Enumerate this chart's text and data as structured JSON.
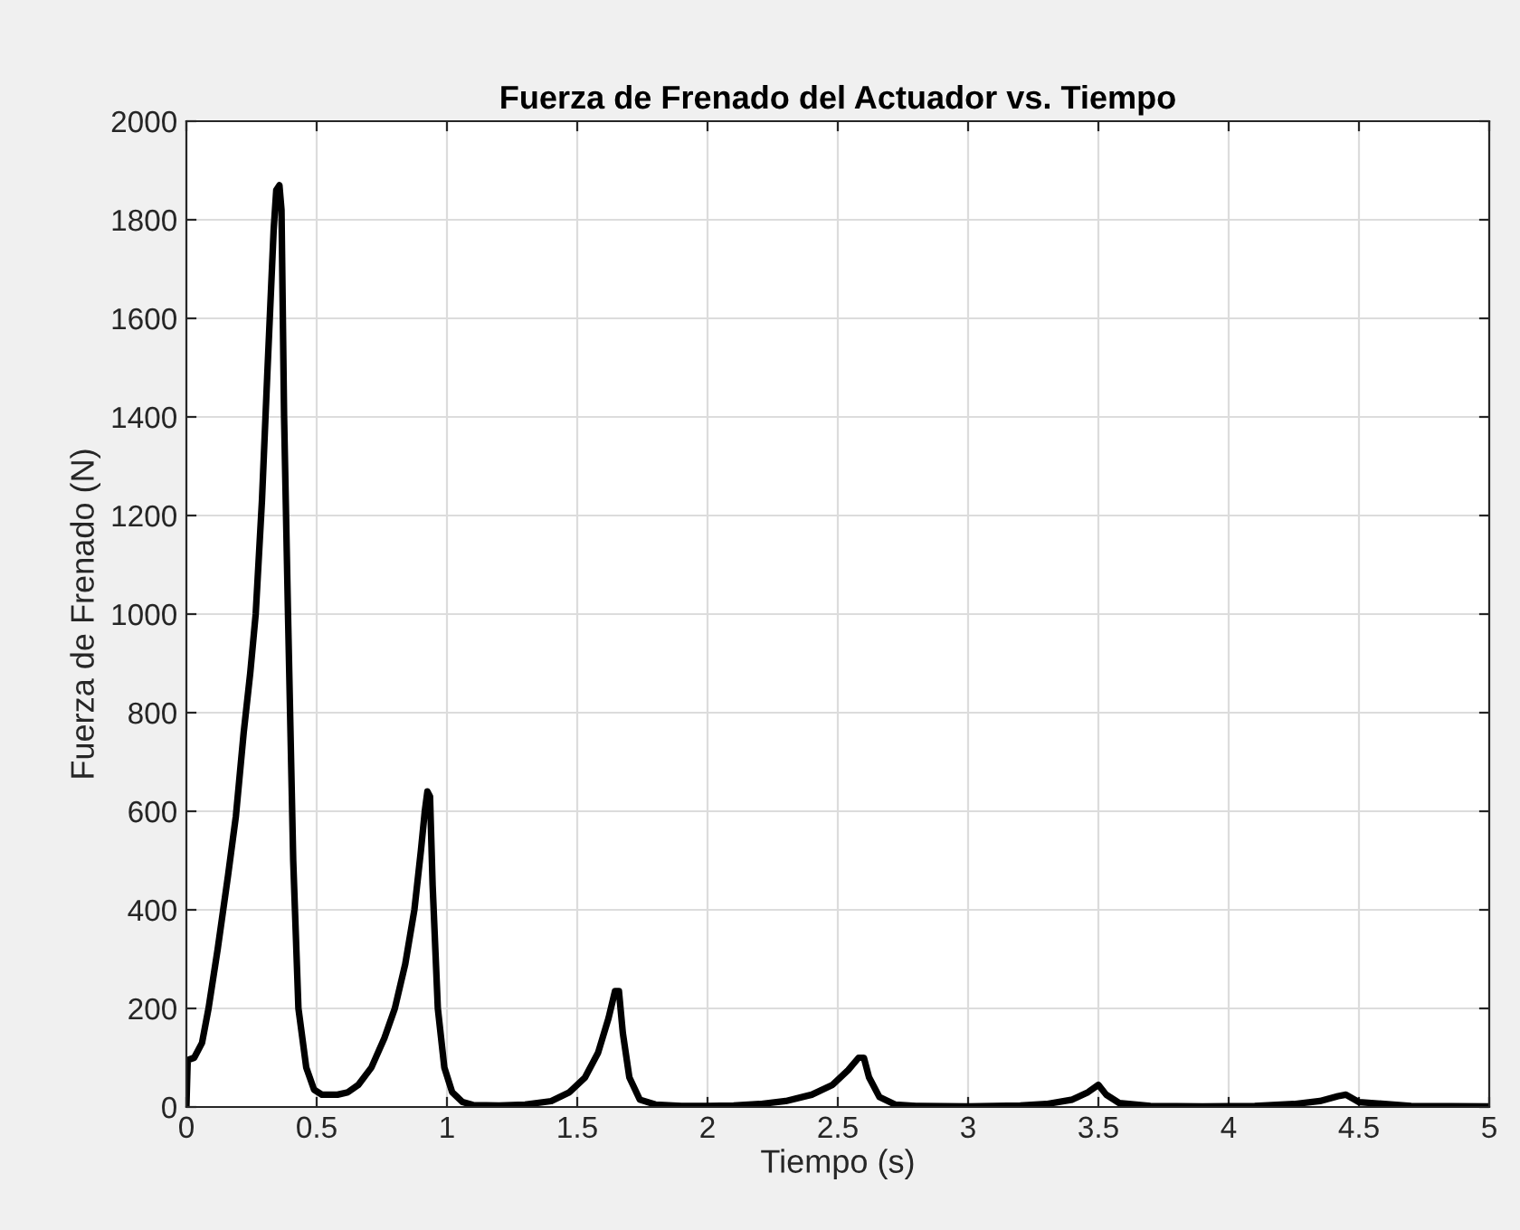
{
  "chart_data": {
    "type": "line",
    "title": "Fuerza de Frenado del Actuador vs. Tiempo",
    "xlabel": "Tiempo (s)",
    "ylabel": "Fuerza de Frenado (N)",
    "xlim": [
      0,
      5
    ],
    "ylim": [
      0,
      2000
    ],
    "xticks": [
      0,
      0.5,
      1,
      1.5,
      2,
      2.5,
      3,
      3.5,
      4,
      4.5,
      5
    ],
    "yticks": [
      0,
      200,
      400,
      600,
      800,
      1000,
      1200,
      1400,
      1600,
      1800,
      2000
    ],
    "grid": true,
    "series": [
      {
        "color": "#000000",
        "x": [
          0,
          0.005,
          0.03,
          0.06,
          0.085,
          0.12,
          0.16,
          0.19,
          0.22,
          0.245,
          0.266,
          0.29,
          0.31,
          0.32,
          0.335,
          0.345,
          0.357,
          0.365,
          0.375,
          0.39,
          0.41,
          0.43,
          0.46,
          0.49,
          0.52,
          0.58,
          0.62,
          0.66,
          0.71,
          0.76,
          0.8,
          0.84,
          0.875,
          0.9,
          0.915,
          0.925,
          0.935,
          0.945,
          0.965,
          0.99,
          1.02,
          1.06,
          1.1,
          1.2,
          1.3,
          1.4,
          1.47,
          1.53,
          1.58,
          1.62,
          1.645,
          1.66,
          1.675,
          1.7,
          1.74,
          1.8,
          1.9,
          2.0,
          2.1,
          2.2,
          2.3,
          2.4,
          2.48,
          2.54,
          2.58,
          2.6,
          2.62,
          2.66,
          2.72,
          2.8,
          3.0,
          3.2,
          3.3,
          3.4,
          3.46,
          3.5,
          3.53,
          3.58,
          3.7,
          3.9,
          4.1,
          4.25,
          4.35,
          4.42,
          4.45,
          4.5,
          4.7,
          5.0
        ],
        "values": [
          0,
          95,
          100,
          130,
          200,
          320,
          470,
          590,
          760,
          880,
          1000,
          1230,
          1480,
          1600,
          1780,
          1860,
          1870,
          1820,
          1400,
          1000,
          500,
          200,
          80,
          35,
          25,
          25,
          30,
          45,
          80,
          140,
          200,
          290,
          400,
          520,
          600,
          640,
          630,
          450,
          200,
          80,
          30,
          10,
          4,
          3,
          5,
          12,
          30,
          60,
          110,
          180,
          235,
          235,
          150,
          60,
          15,
          5,
          2,
          2,
          3,
          6,
          12,
          25,
          45,
          75,
          100,
          100,
          60,
          20,
          5,
          2,
          1,
          3,
          6,
          15,
          30,
          45,
          25,
          8,
          2,
          1,
          2,
          6,
          12,
          22,
          25,
          10,
          2,
          1
        ]
      }
    ]
  }
}
